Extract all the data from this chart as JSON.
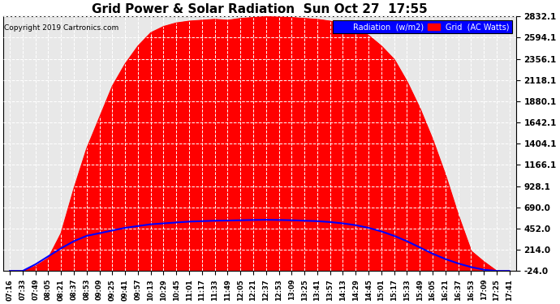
{
  "title": "Grid Power & Solar Radiation  Sun Oct 27  17:55",
  "copyright": "Copyright 2019 Cartronics.com",
  "legend_radiation": "Radiation  (w/m2)",
  "legend_grid": "Grid  (AC Watts)",
  "yticks": [
    -24.0,
    214.0,
    452.0,
    690.0,
    928.1,
    1166.1,
    1404.1,
    1642.1,
    1880.1,
    2118.1,
    2356.1,
    2594.1,
    2832.1
  ],
  "ylim": [
    -24.0,
    2832.1
  ],
  "radiation_color": "#0000ff",
  "grid_power_color": "#ff0000",
  "xtick_labels": [
    "07:16",
    "07:33",
    "07:49",
    "08:05",
    "08:21",
    "08:37",
    "08:53",
    "09:09",
    "09:25",
    "09:41",
    "09:57",
    "10:13",
    "10:29",
    "10:45",
    "11:01",
    "11:17",
    "11:33",
    "11:49",
    "12:05",
    "12:21",
    "12:37",
    "12:53",
    "13:09",
    "13:25",
    "13:41",
    "13:57",
    "14:13",
    "14:29",
    "14:45",
    "15:01",
    "15:17",
    "15:33",
    "15:49",
    "16:05",
    "16:21",
    "16:37",
    "16:53",
    "17:09",
    "17:25",
    "17:41"
  ],
  "grid_power_values": [
    -24,
    -24,
    30,
    120,
    400,
    900,
    1350,
    1700,
    2050,
    2300,
    2500,
    2650,
    2720,
    2760,
    2780,
    2790,
    2800,
    2790,
    2810,
    2820,
    2830,
    2825,
    2820,
    2810,
    2800,
    2780,
    2750,
    2700,
    2620,
    2500,
    2350,
    2100,
    1800,
    1450,
    1050,
    600,
    200,
    80,
    -24,
    -24
  ],
  "radiation_values": [
    -24,
    -24,
    50,
    140,
    230,
    310,
    370,
    400,
    430,
    460,
    480,
    500,
    510,
    520,
    530,
    535,
    540,
    542,
    545,
    548,
    550,
    548,
    545,
    540,
    535,
    525,
    510,
    490,
    460,
    420,
    370,
    310,
    240,
    170,
    110,
    60,
    20,
    -10,
    -24,
    -24
  ]
}
